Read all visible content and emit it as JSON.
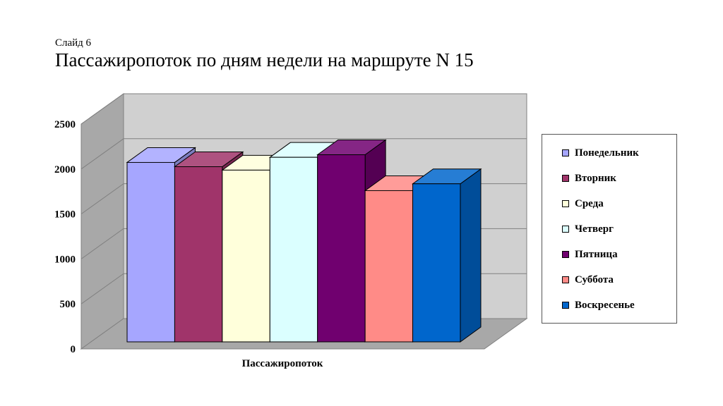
{
  "slide": {
    "subtitle": "Слайд 6",
    "title": "Пассажиропоток по дням недели на маршруте N 15"
  },
  "chart_data": {
    "type": "bar",
    "style": "3d-clustered-column",
    "categories": [
      "Пассажиропоток"
    ],
    "xlabel": "Пассажиропоток",
    "ylabel": "",
    "ylim": [
      0,
      2500
    ],
    "yticks": [
      0,
      500,
      1000,
      1500,
      2000,
      2500
    ],
    "grid": true,
    "legend_position": "right",
    "series": [
      {
        "name": "Понедельник",
        "values": [
          2100
        ],
        "color": "#a6a6ff"
      },
      {
        "name": "Вторник",
        "values": [
          2050
        ],
        "color": "#a0346a"
      },
      {
        "name": "Среда",
        "values": [
          2010
        ],
        "color": "#ffffdb"
      },
      {
        "name": "Четверг",
        "values": [
          2160
        ],
        "color": "#dbffff"
      },
      {
        "name": "Пятница",
        "values": [
          2190
        ],
        "color": "#70006f"
      },
      {
        "name": "Суббота",
        "values": [
          1770
        ],
        "color": "#ff8b87"
      },
      {
        "name": "Воскресенье",
        "values": [
          1850
        ],
        "color": "#0066cc"
      }
    ]
  }
}
